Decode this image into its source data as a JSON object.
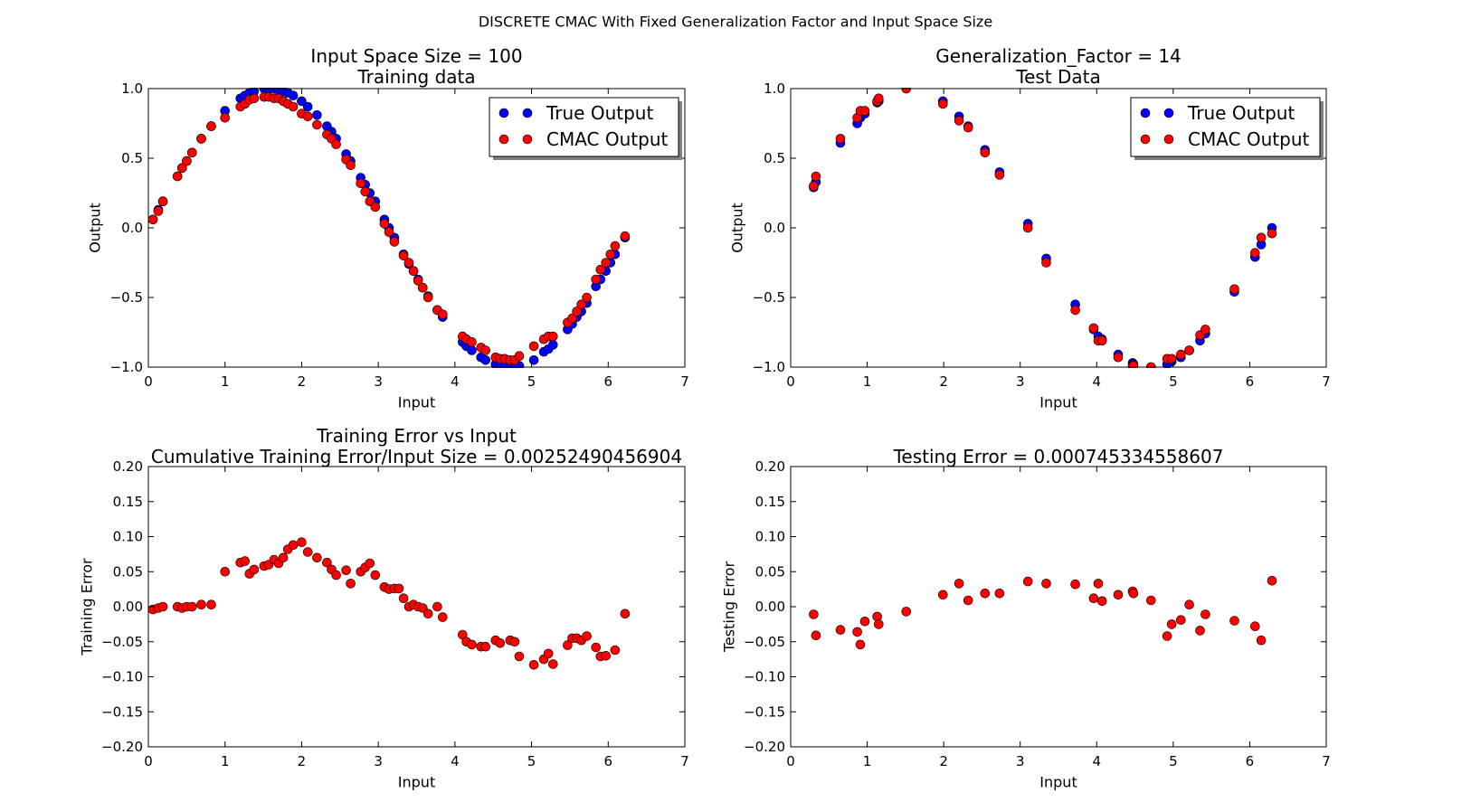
{
  "figure_title": "DISCRETE CMAC With Fixed Generalization Factor and Input Space Size",
  "colors": {
    "true_series": "#0000ff",
    "cmac_series": "#ff0000",
    "axes": "#000000",
    "background": "#ffffff"
  },
  "chart_data": [
    {
      "type": "scatter",
      "title": [
        "Input Space Size = 100",
        "Training data"
      ],
      "xlabel": "Input",
      "ylabel": "Output",
      "xlim": [
        0,
        7
      ],
      "ylim": [
        -1.0,
        1.0
      ],
      "xticks": [
        "0",
        "1",
        "2",
        "3",
        "4",
        "5",
        "6",
        "7"
      ],
      "yticks": [
        "−1.0",
        "−0.5",
        "0.0",
        "0.5",
        "1.0"
      ],
      "grid": false,
      "legend": "top-right",
      "legend_labels": [
        "True Output",
        "CMAC Output"
      ],
      "series": [
        {
          "name": "True Output",
          "color": "#0000ff",
          "x": [
            0.06,
            0.13,
            0.19,
            0.38,
            0.44,
            0.5,
            0.57,
            0.69,
            0.82,
            1.0,
            1.2,
            1.26,
            1.32,
            1.38,
            1.51,
            1.57,
            1.64,
            1.7,
            1.76,
            1.82,
            1.89,
            2.0,
            2.08,
            2.2,
            2.33,
            2.39,
            2.45,
            2.58,
            2.64,
            2.77,
            2.83,
            2.89,
            2.96,
            3.08,
            3.14,
            3.21,
            3.33,
            3.4,
            3.46,
            3.52,
            3.58,
            3.65,
            3.77,
            3.84,
            4.1,
            4.15,
            4.22,
            4.34,
            4.4,
            4.53,
            4.59,
            4.65,
            4.72,
            4.78,
            4.84,
            5.03,
            5.16,
            5.22,
            5.28,
            5.47,
            5.53,
            5.59,
            5.65,
            5.72,
            5.84,
            5.9,
            5.97,
            6.03,
            6.09,
            6.22
          ],
          "y": [
            0.06,
            0.13,
            0.19,
            0.37,
            0.43,
            0.48,
            0.54,
            0.64,
            0.73,
            0.84,
            0.93,
            0.95,
            0.97,
            0.98,
            1.0,
            1.0,
            1.0,
            0.99,
            0.98,
            0.97,
            0.95,
            0.91,
            0.87,
            0.81,
            0.73,
            0.69,
            0.64,
            0.53,
            0.48,
            0.36,
            0.31,
            0.25,
            0.19,
            0.06,
            0.0,
            -0.07,
            -0.19,
            -0.26,
            -0.31,
            -0.37,
            -0.43,
            -0.49,
            -0.59,
            -0.64,
            -0.82,
            -0.85,
            -0.88,
            -0.93,
            -0.95,
            -0.98,
            -0.99,
            -1.0,
            -1.0,
            -1.0,
            -0.99,
            -0.95,
            -0.89,
            -0.87,
            -0.84,
            -0.73,
            -0.69,
            -0.64,
            -0.6,
            -0.54,
            -0.42,
            -0.37,
            -0.31,
            -0.25,
            -0.19,
            -0.07
          ]
        },
        {
          "name": "CMAC Output",
          "color": "#ff0000",
          "x": [
            0.06,
            0.13,
            0.19,
            0.38,
            0.44,
            0.5,
            0.57,
            0.69,
            0.82,
            1.0,
            1.2,
            1.26,
            1.32,
            1.38,
            1.51,
            1.57,
            1.64,
            1.7,
            1.76,
            1.82,
            1.89,
            2.0,
            2.08,
            2.2,
            2.33,
            2.39,
            2.45,
            2.58,
            2.64,
            2.77,
            2.83,
            2.89,
            2.96,
            3.08,
            3.14,
            3.21,
            3.33,
            3.4,
            3.46,
            3.52,
            3.58,
            3.65,
            3.77,
            3.84,
            4.1,
            4.15,
            4.22,
            4.34,
            4.4,
            4.53,
            4.59,
            4.65,
            4.72,
            4.78,
            4.84,
            5.03,
            5.16,
            5.22,
            5.28,
            5.47,
            5.53,
            5.59,
            5.65,
            5.72,
            5.84,
            5.9,
            5.97,
            6.03,
            6.09,
            6.22
          ],
          "y": [
            0.06,
            0.12,
            0.19,
            0.37,
            0.43,
            0.48,
            0.54,
            0.64,
            0.73,
            0.79,
            0.87,
            0.89,
            0.92,
            0.93,
            0.94,
            0.94,
            0.93,
            0.93,
            0.91,
            0.89,
            0.87,
            0.82,
            0.8,
            0.74,
            0.67,
            0.64,
            0.6,
            0.49,
            0.45,
            0.32,
            0.26,
            0.19,
            0.15,
            0.03,
            -0.03,
            -0.1,
            -0.2,
            -0.25,
            -0.31,
            -0.38,
            -0.43,
            -0.5,
            -0.59,
            -0.62,
            -0.78,
            -0.8,
            -0.82,
            -0.86,
            -0.88,
            -0.93,
            -0.94,
            -0.94,
            -0.95,
            -0.95,
            -0.92,
            -0.85,
            -0.8,
            -0.78,
            -0.78,
            -0.68,
            -0.65,
            -0.6,
            -0.55,
            -0.5,
            -0.37,
            -0.3,
            -0.25,
            -0.19,
            -0.13,
            -0.06
          ]
        }
      ]
    },
    {
      "type": "scatter",
      "title": [
        "Generalization_Factor = 14",
        "Test Data"
      ],
      "xlabel": "Input",
      "ylabel": "Output",
      "xlim": [
        0,
        7
      ],
      "ylim": [
        -1.0,
        1.0
      ],
      "xticks": [
        "0",
        "1",
        "2",
        "3",
        "4",
        "5",
        "6",
        "7"
      ],
      "yticks": [
        "−1.0",
        "−0.5",
        "0.0",
        "0.5",
        "1.0"
      ],
      "grid": false,
      "legend": "top-right",
      "legend_labels": [
        "True Output",
        "CMAC Output"
      ],
      "series": [
        {
          "name": "True Output",
          "color": "#0000ff",
          "x": [
            0.3,
            0.33,
            0.65,
            0.87,
            0.91,
            0.97,
            1.13,
            1.15,
            1.51,
            1.99,
            2.2,
            2.32,
            2.54,
            2.73,
            3.1,
            3.34,
            3.72,
            3.96,
            4.02,
            4.07,
            4.28,
            4.47,
            4.48,
            4.71,
            4.92,
            4.98,
            5.1,
            5.21,
            5.35,
            5.42,
            5.8,
            6.07,
            6.15,
            6.29
          ],
          "y": [
            0.29,
            0.33,
            0.61,
            0.75,
            0.79,
            0.82,
            0.9,
            0.91,
            1.0,
            0.91,
            0.8,
            0.73,
            0.56,
            0.4,
            0.03,
            -0.22,
            -0.55,
            -0.73,
            -0.78,
            -0.8,
            -0.91,
            -0.97,
            -0.98,
            -1.0,
            -0.98,
            -0.96,
            -0.93,
            -0.88,
            -0.81,
            -0.76,
            -0.46,
            -0.21,
            -0.12,
            0.0
          ]
        },
        {
          "name": "CMAC Output",
          "color": "#ff0000",
          "x": [
            0.3,
            0.33,
            0.65,
            0.87,
            0.91,
            0.97,
            1.13,
            1.15,
            1.51,
            1.99,
            2.2,
            2.32,
            2.54,
            2.73,
            3.1,
            3.34,
            3.72,
            3.96,
            4.02,
            4.07,
            4.28,
            4.47,
            4.48,
            4.71,
            4.92,
            4.98,
            5.1,
            5.21,
            5.35,
            5.42,
            5.8,
            6.07,
            6.15,
            6.29
          ],
          "y": [
            0.3,
            0.37,
            0.64,
            0.79,
            0.84,
            0.84,
            0.91,
            0.93,
            1.0,
            0.89,
            0.77,
            0.72,
            0.54,
            0.38,
            0.0,
            -0.25,
            -0.59,
            -0.72,
            -0.81,
            -0.81,
            -0.93,
            -0.99,
            -0.99,
            -1.0,
            -0.94,
            -0.94,
            -0.91,
            -0.88,
            -0.77,
            -0.73,
            -0.44,
            -0.18,
            -0.07,
            -0.04
          ]
        }
      ]
    },
    {
      "type": "scatter",
      "title": [
        "Training Error vs Input",
        "Cumulative Training Error/Input Size = 0.00252490456904"
      ],
      "xlabel": "Input",
      "ylabel": "Training Error",
      "xlim": [
        0,
        7
      ],
      "ylim": [
        -0.2,
        0.2
      ],
      "xticks": [
        "0",
        "1",
        "2",
        "3",
        "4",
        "5",
        "6",
        "7"
      ],
      "yticks": [
        "−0.20",
        "−0.15",
        "−0.10",
        "−0.05",
        "0.00",
        "0.05",
        "0.10",
        "0.15",
        "0.20"
      ],
      "grid": false,
      "series": [
        {
          "color": "#ff0000",
          "x": [
            0.06,
            0.13,
            0.19,
            0.38,
            0.44,
            0.5,
            0.57,
            0.69,
            0.82,
            1.0,
            1.2,
            1.26,
            1.32,
            1.38,
            1.51,
            1.57,
            1.64,
            1.7,
            1.76,
            1.82,
            1.89,
            2.0,
            2.08,
            2.2,
            2.33,
            2.39,
            2.45,
            2.58,
            2.64,
            2.77,
            2.83,
            2.89,
            2.96,
            3.08,
            3.14,
            3.21,
            3.27,
            3.33,
            3.4,
            3.46,
            3.52,
            3.58,
            3.65,
            3.77,
            3.84,
            4.1,
            4.15,
            4.22,
            4.34,
            4.4,
            4.53,
            4.59,
            4.72,
            4.78,
            4.84,
            5.03,
            5.16,
            5.22,
            5.28,
            5.47,
            5.53,
            5.59,
            5.65,
            5.72,
            5.84,
            5.9,
            5.97,
            6.09,
            6.22
          ],
          "y": [
            -0.004,
            -0.002,
            0.0,
            0.0,
            -0.002,
            0.0,
            0.0,
            0.003,
            0.003,
            0.05,
            0.063,
            0.065,
            0.047,
            0.053,
            0.058,
            0.06,
            0.067,
            0.062,
            0.07,
            0.082,
            0.088,
            0.092,
            0.078,
            0.07,
            0.063,
            0.053,
            0.045,
            0.052,
            0.033,
            0.05,
            0.056,
            0.062,
            0.045,
            0.028,
            0.025,
            0.026,
            0.026,
            0.012,
            0.0,
            0.003,
            0.0,
            -0.002,
            -0.01,
            0.0,
            -0.015,
            -0.04,
            -0.05,
            -0.054,
            -0.057,
            -0.057,
            -0.048,
            -0.052,
            -0.048,
            -0.05,
            -0.071,
            -0.083,
            -0.075,
            -0.067,
            -0.082,
            -0.055,
            -0.045,
            -0.045,
            -0.048,
            -0.042,
            -0.058,
            -0.071,
            -0.07,
            -0.062,
            -0.01
          ]
        }
      ]
    },
    {
      "type": "scatter",
      "title": [
        "Testing Error = 0.000745334558607"
      ],
      "xlabel": "Input",
      "ylabel": "Testing Error",
      "xlim": [
        0,
        7
      ],
      "ylim": [
        -0.2,
        0.2
      ],
      "xticks": [
        "0",
        "1",
        "2",
        "3",
        "4",
        "5",
        "6",
        "7"
      ],
      "yticks": [
        "−0.20",
        "−0.15",
        "−0.10",
        "−0.05",
        "0.00",
        "0.05",
        "0.10",
        "0.15",
        "0.20"
      ],
      "grid": false,
      "series": [
        {
          "color": "#ff0000",
          "x": [
            0.3,
            0.33,
            0.65,
            0.87,
            0.91,
            0.97,
            1.13,
            1.15,
            1.51,
            1.99,
            2.2,
            2.32,
            2.54,
            2.73,
            3.1,
            3.34,
            3.72,
            3.96,
            4.02,
            4.07,
            4.28,
            4.47,
            4.48,
            4.71,
            4.92,
            4.98,
            5.1,
            5.21,
            5.35,
            5.42,
            5.8,
            6.07,
            6.15,
            6.29
          ],
          "y": [
            -0.011,
            -0.041,
            -0.033,
            -0.036,
            -0.054,
            -0.021,
            -0.014,
            -0.025,
            -0.007,
            0.017,
            0.033,
            0.009,
            0.019,
            0.019,
            0.036,
            0.033,
            0.032,
            0.012,
            0.033,
            0.008,
            0.017,
            0.022,
            0.019,
            0.009,
            -0.042,
            -0.025,
            -0.019,
            0.003,
            -0.034,
            -0.011,
            -0.02,
            -0.028,
            -0.048,
            0.037
          ]
        }
      ]
    }
  ]
}
